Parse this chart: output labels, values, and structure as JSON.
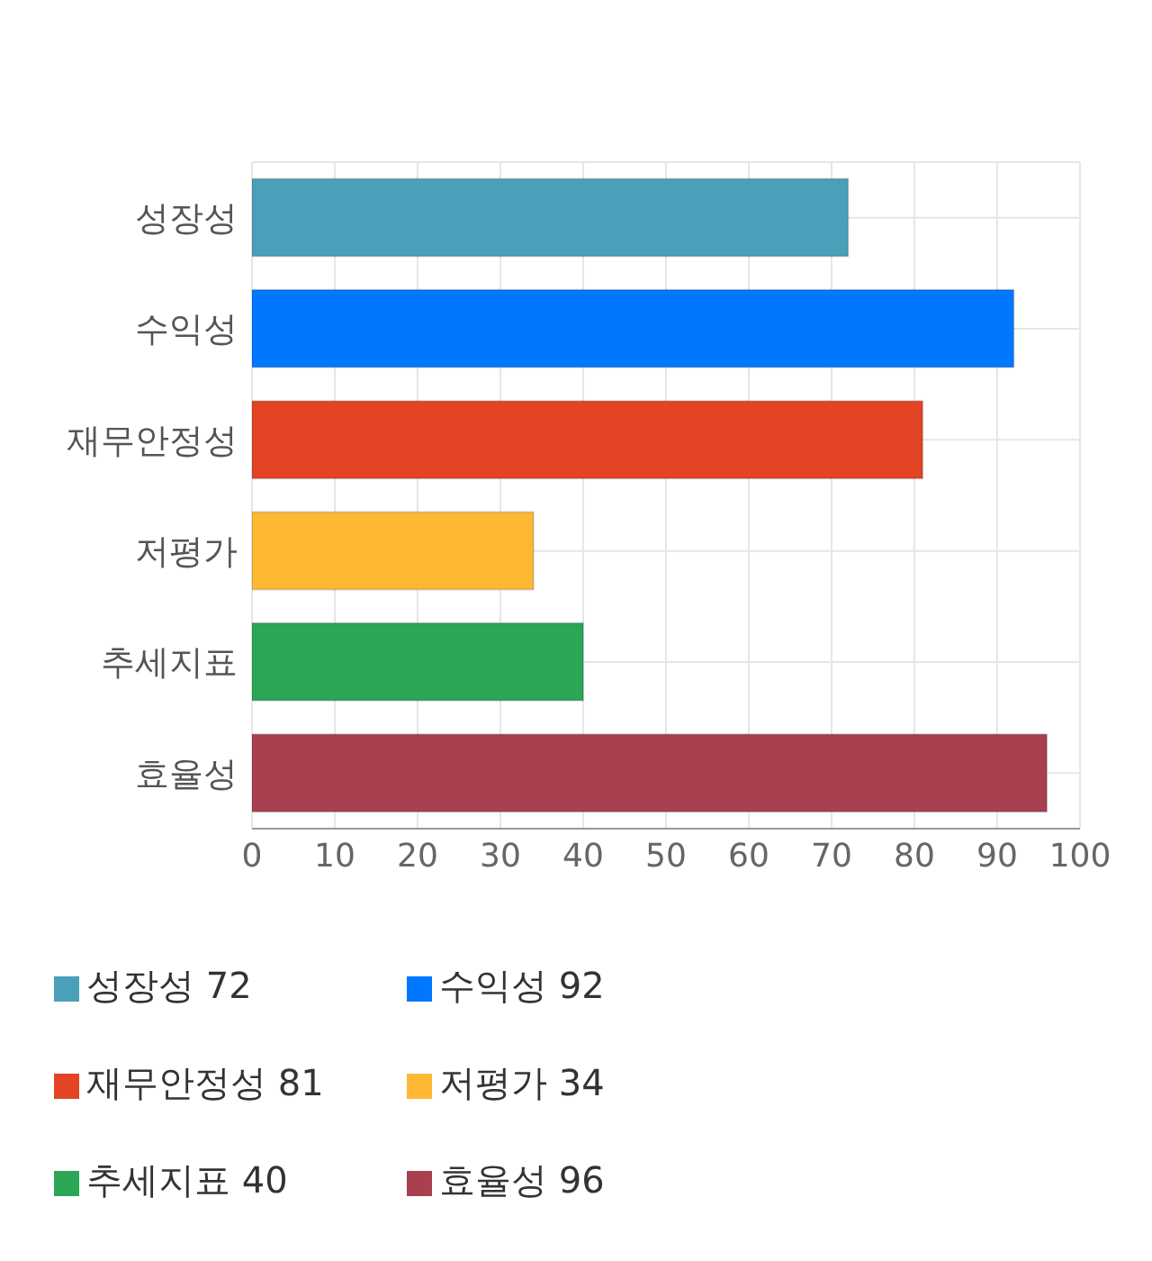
{
  "chart_data": {
    "type": "bar",
    "orientation": "horizontal",
    "stacked": true,
    "categories": [
      "성장성",
      "수익성",
      "재무안정성",
      "저평가",
      "추세지표",
      "효율성"
    ],
    "series": [
      {
        "name": "성장성 72",
        "color": "#4aa0b8",
        "values": [
          72,
          null,
          null,
          null,
          null,
          null
        ]
      },
      {
        "name": "수익성 92",
        "color": "#0077ff",
        "values": [
          null,
          92,
          null,
          null,
          null,
          null
        ]
      },
      {
        "name": "재무안정성 81",
        "color": "#e24424",
        "values": [
          null,
          null,
          81,
          null,
          null,
          null
        ]
      },
      {
        "name": "저평가 34",
        "color": "#ffb833",
        "values": [
          null,
          null,
          null,
          34,
          null,
          null
        ]
      },
      {
        "name": "추세지표 40",
        "color": "#2aa655",
        "values": [
          null,
          null,
          null,
          null,
          40,
          null
        ]
      },
      {
        "name": "효율성 96",
        "color": "#a8404f",
        "values": [
          null,
          null,
          null,
          null,
          null,
          96
        ]
      }
    ],
    "xlim": [
      0,
      100
    ],
    "xticks": [
      0,
      10,
      20,
      30,
      40,
      50,
      60,
      70,
      80,
      90,
      100
    ],
    "grid": true,
    "legend": "bottom"
  }
}
